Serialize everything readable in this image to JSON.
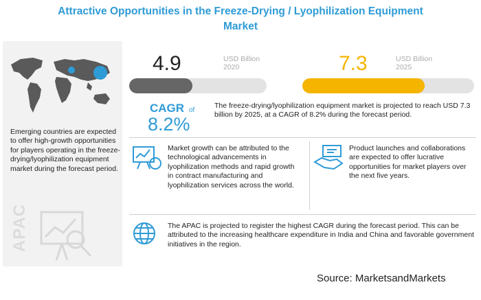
{
  "title_line1": "Attractive Opportunities in the Freeze-Drying / Lyophilization Equipment",
  "title_line2": "Market",
  "left_panel": {
    "text": "Emerging countries are expected to offer high-growth opportunities for players operating in the freeze-drying/lyophilization equipment market during the forecast period.",
    "region_label": "APAC"
  },
  "market": {
    "value_2020": "4.9",
    "unit_2020": "USD Billion",
    "year_2020": "2020",
    "value_2025": "7.3",
    "unit_2025": "USD Billion",
    "year_2025": "2025",
    "bar_2020_fraction": 0.46,
    "bar_2025_fraction": 0.71,
    "bar_2020_color": "#666666",
    "bar_2025_color": "#f5b400"
  },
  "cagr": {
    "label": "CAGR",
    "of": "of",
    "value": "8.2%",
    "text": "The freeze-drying/lyophilization equipment market is projected to reach USD 7.3 billion by 2025, at a CAGR of 8.2% during the forecast period."
  },
  "drivers": {
    "growth_text": "Market growth can be attributed to the technological advancements in lyophilization methods and rapid growth in contract manufacturing and lyophilization services across the world.",
    "launch_text": "Product launches and collaborations are expected to offer lucrative opportunities for market players over the next five years.",
    "apac_text": "The APAC is projected to register the highest CAGR during the forecast period. This can be attributed to the increasing healthcare expenditure in India and China and favorable government initiatives in the region."
  },
  "source": "Source: MarketsandMarkets",
  "colors": {
    "accent": "#2e9bd6",
    "highlight": "#f5b400",
    "panel": "#f2f2f2"
  }
}
